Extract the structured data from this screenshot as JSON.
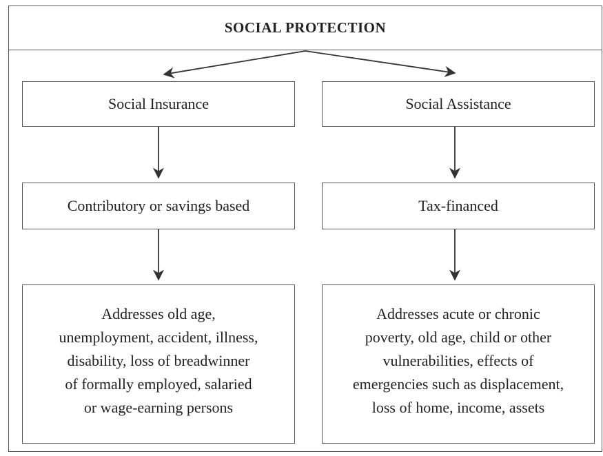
{
  "title": "SOCIAL PROTECTION",
  "nodes": [
    {
      "label": "Social Insurance"
    },
    {
      "label": "Social Assistance"
    },
    {
      "label": "Contributory or savings based"
    },
    {
      "label": "Tax-financed"
    },
    {
      "lines": [
        "Addresses old age,",
        "unemployment, accident, illness,",
        "disability, loss of breadwinner",
        "of formally employed, salaried",
        "or wage-earning persons"
      ]
    },
    {
      "lines": [
        "Addresses acute or chronic",
        "poverty, old age, child or other",
        "vulnerabilities, effects of",
        "emergencies such as displacement,",
        "loss of home, income, assets"
      ]
    }
  ]
}
